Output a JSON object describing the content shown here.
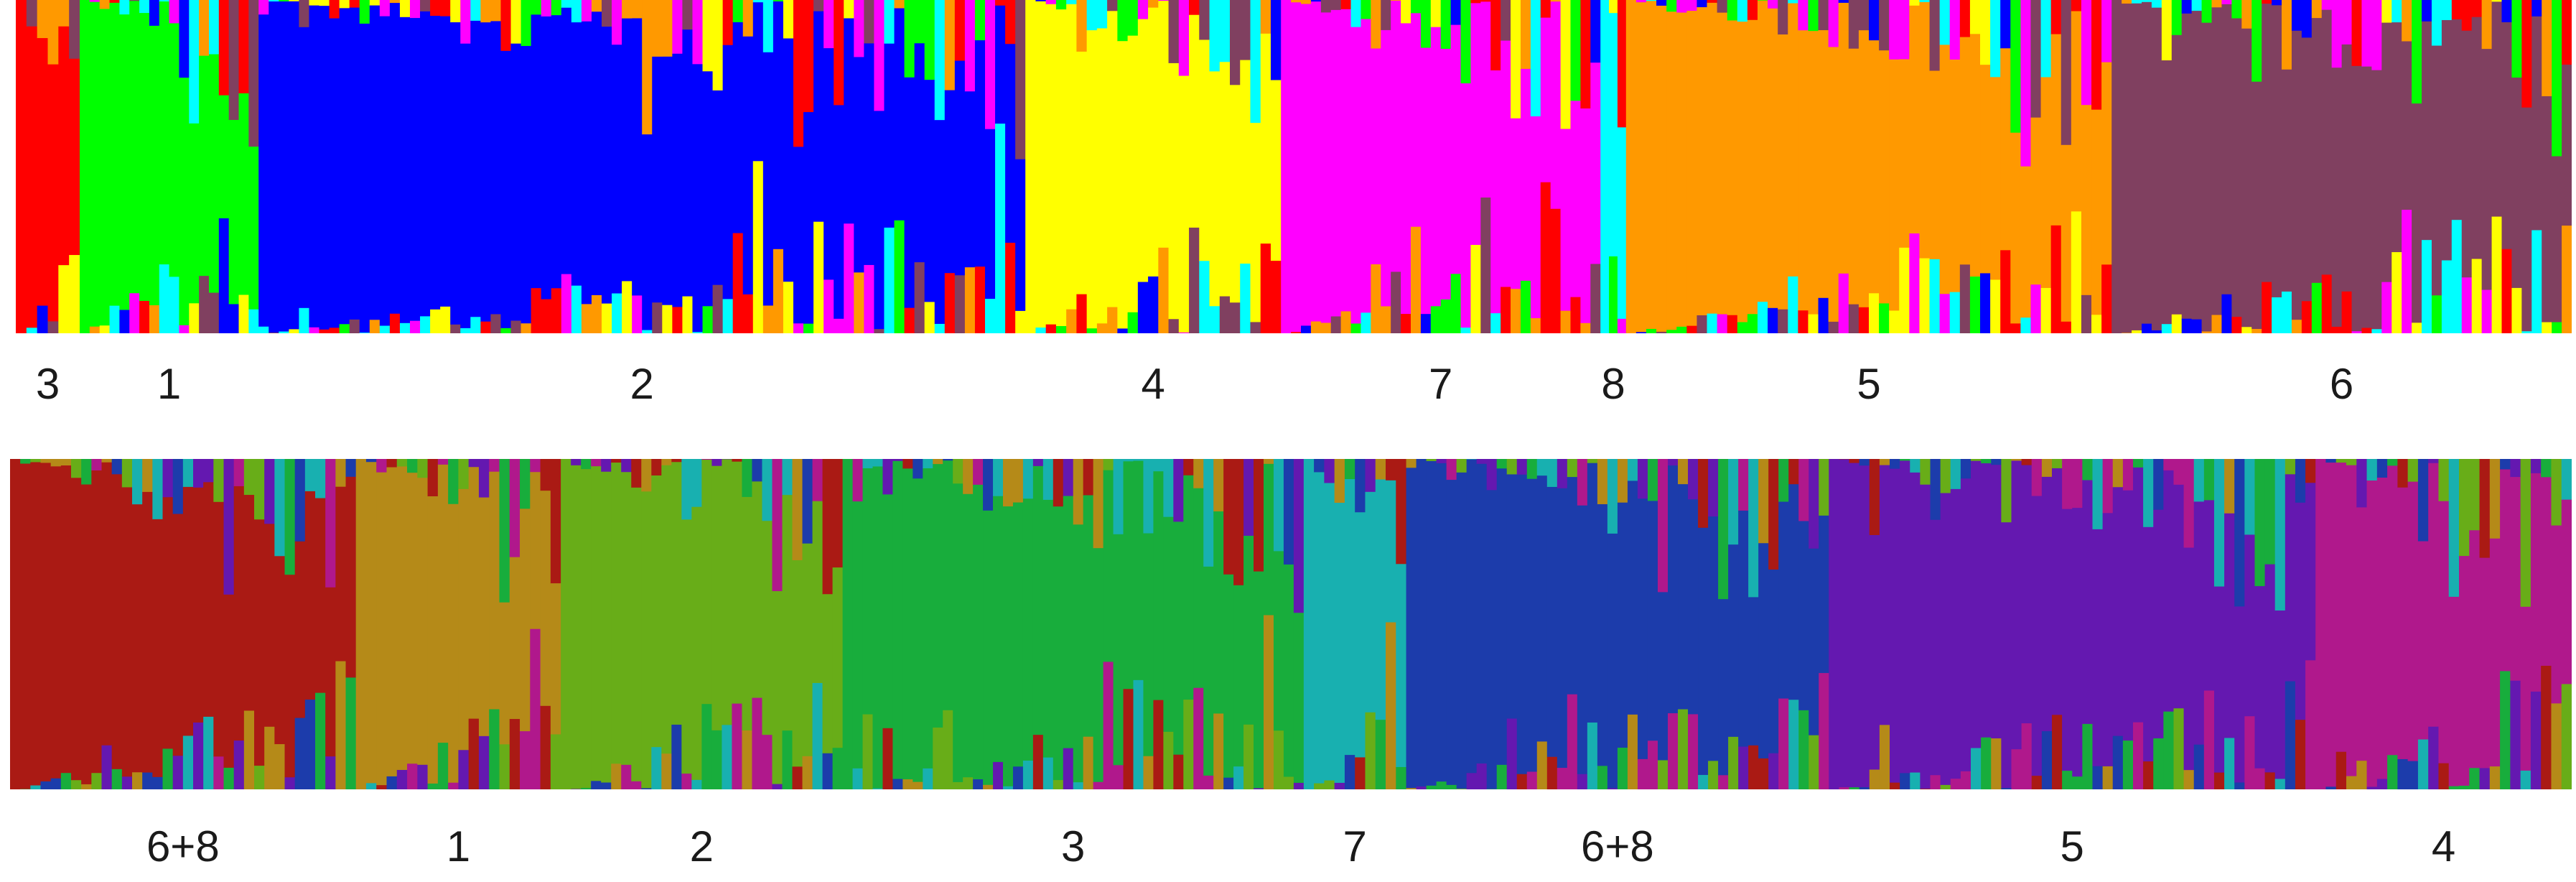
{
  "chart_data": [
    {
      "type": "bar",
      "layout": "stacked-100",
      "k": 8,
      "cluster_colors": [
        "#ff0000",
        "#00ff00",
        "#0000ff",
        "#ffff00",
        "#ff00ff",
        "#00ffff",
        "#ff9900",
        "#804060"
      ],
      "populations": [
        {
          "label": "3",
          "dominant_color": "#ff0000",
          "share": 0.025
        },
        {
          "label": "1",
          "dominant_color": "#00ff00",
          "share": 0.07
        },
        {
          "label": "2",
          "dominant_color": "#0000ff",
          "share": 0.3
        },
        {
          "label": "4",
          "dominant_color": "#ffff00",
          "share": 0.1
        },
        {
          "label": "7",
          "dominant_color": "#ff00ff",
          "share": 0.125
        },
        {
          "label": "8",
          "dominant_color": "#00ffff",
          "share": 0.01
        },
        {
          "label": "5",
          "dominant_color": "#ff9900",
          "share": 0.19
        },
        {
          "label": "6",
          "dominant_color": "#804060",
          "share": 0.18
        }
      ]
    },
    {
      "type": "bar",
      "layout": "stacked-100",
      "k": 8,
      "cluster_colors": [
        "#aa1a14",
        "#b58a18",
        "#68ad18",
        "#18ad3c",
        "#18b0b0",
        "#1c3cab",
        "#6418b0",
        "#b0188c"
      ],
      "populations": [
        {
          "label": "6+8",
          "dominant_color": "#aa1a14",
          "share": 0.135
        },
        {
          "label": "1",
          "dominant_color": "#b58a18",
          "share": 0.08
        },
        {
          "label": "2",
          "dominant_color": "#68ad18",
          "share": 0.11
        },
        {
          "label": "3",
          "dominant_color": "#18ad3c",
          "share": 0.18
        },
        {
          "label": "7",
          "dominant_color": "#18b0b0",
          "share": 0.04
        },
        {
          "label": "6+8",
          "dominant_color": "#1c3cab",
          "share": 0.165
        },
        {
          "label": "5",
          "dominant_color": "#6418b0",
          "share": 0.19
        },
        {
          "label": "4",
          "dominant_color": "#b0188c",
          "share": 0.1
        }
      ]
    }
  ]
}
